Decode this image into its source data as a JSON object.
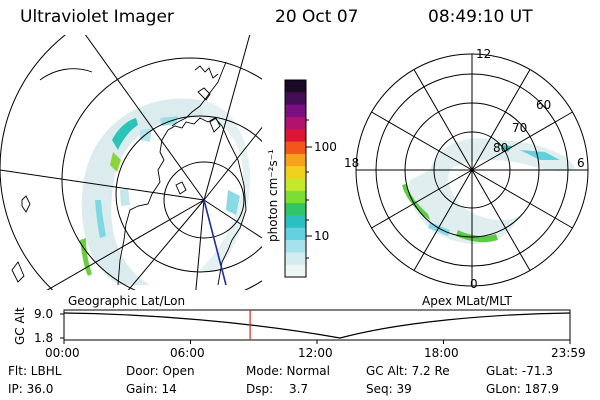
{
  "header": {
    "title": "Ultraviolet Imager",
    "date": "20 Oct 07",
    "time": "08:49:10 UT"
  },
  "left_panel": {
    "caption": "Geographic Lat/Lon"
  },
  "right_panel": {
    "caption": "Apex MLat/MLT",
    "mlt_labels": {
      "top": "12",
      "left": "18",
      "right": "6",
      "bottom": "0"
    },
    "lat_labels": [
      "60",
      "70",
      "80"
    ]
  },
  "colorbar": {
    "unit": "photon cm⁻²s⁻¹",
    "ticks": [
      "100",
      "10"
    ],
    "colors": [
      "#1a0a26",
      "#440d56",
      "#7a0f82",
      "#b0126e",
      "#dc1436",
      "#f2561a",
      "#f7a21c",
      "#f0d21e",
      "#c6e82a",
      "#7cde34",
      "#34c468",
      "#2abfc0",
      "#62d0e0",
      "#a6e2ec",
      "#d2ecef",
      "#eef5f5"
    ]
  },
  "altitude_plot": {
    "ylabel": "GC Alt",
    "ymax": "9.0",
    "ymin": "1.8",
    "xticks": [
      "00:00",
      "06:00",
      "12:00",
      "18:00",
      "23:59"
    ],
    "cursor_hour": 8.82,
    "marker_color": "#e02020"
  },
  "footer": {
    "flt": "Flt: LBHL",
    "ip": "IP: 36.0",
    "door": "Door: Open",
    "gain": "Gain: 14",
    "mode": "Mode: Normal",
    "dsp_label": "Dsp:",
    "dsp_value": "3.7",
    "gc_alt": "GC Alt: 7.2 Re",
    "seq": "Seq: 39",
    "glat": "GLat: -71.3",
    "glon": "GLon: 187.9"
  }
}
